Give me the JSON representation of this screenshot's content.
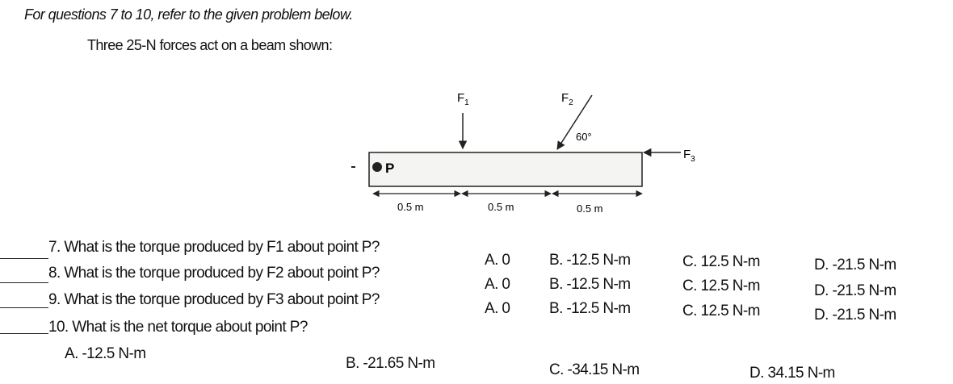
{
  "header": {
    "instruction": "For questions 7 to 10, refer to the given problem below.",
    "problem": "Three 25-N forces act on a beam shown:"
  },
  "diagram": {
    "f1": {
      "letter": "F",
      "sub": "1"
    },
    "f2": {
      "letter": "F",
      "sub": "2"
    },
    "f3": {
      "letter": "F",
      "sub": "3"
    },
    "angle": "60°",
    "point": "P",
    "distances": [
      "0.5 m",
      "0.5 m",
      "0.5 m"
    ]
  },
  "questions": [
    {
      "text": "7. What is the torque produced by F1 about point P?",
      "options": [
        "A. 0",
        "B. -12.5 N-m",
        "C. 12.5 N-m",
        "D. -21.5 N-m"
      ]
    },
    {
      "text": "8. What is the torque produced by F2 about point P?",
      "options": [
        "A. 0",
        "B. -12.5 N-m",
        "C. 12.5 N-m",
        "D. -21.5 N-m"
      ]
    },
    {
      "text": "9. What is the torque produced by F3 about point P?",
      "options": [
        "A. 0",
        "B. -12.5 N-m",
        "C. 12.5 N-m",
        "D. -21.5 N-m"
      ]
    },
    {
      "text": "10. What is the net torque about point P?",
      "options": [
        "A. -12.5 N-m",
        "B. -21.65 N-m",
        "C. -34.15 N-m",
        "D. 34.15 N-m"
      ]
    }
  ]
}
